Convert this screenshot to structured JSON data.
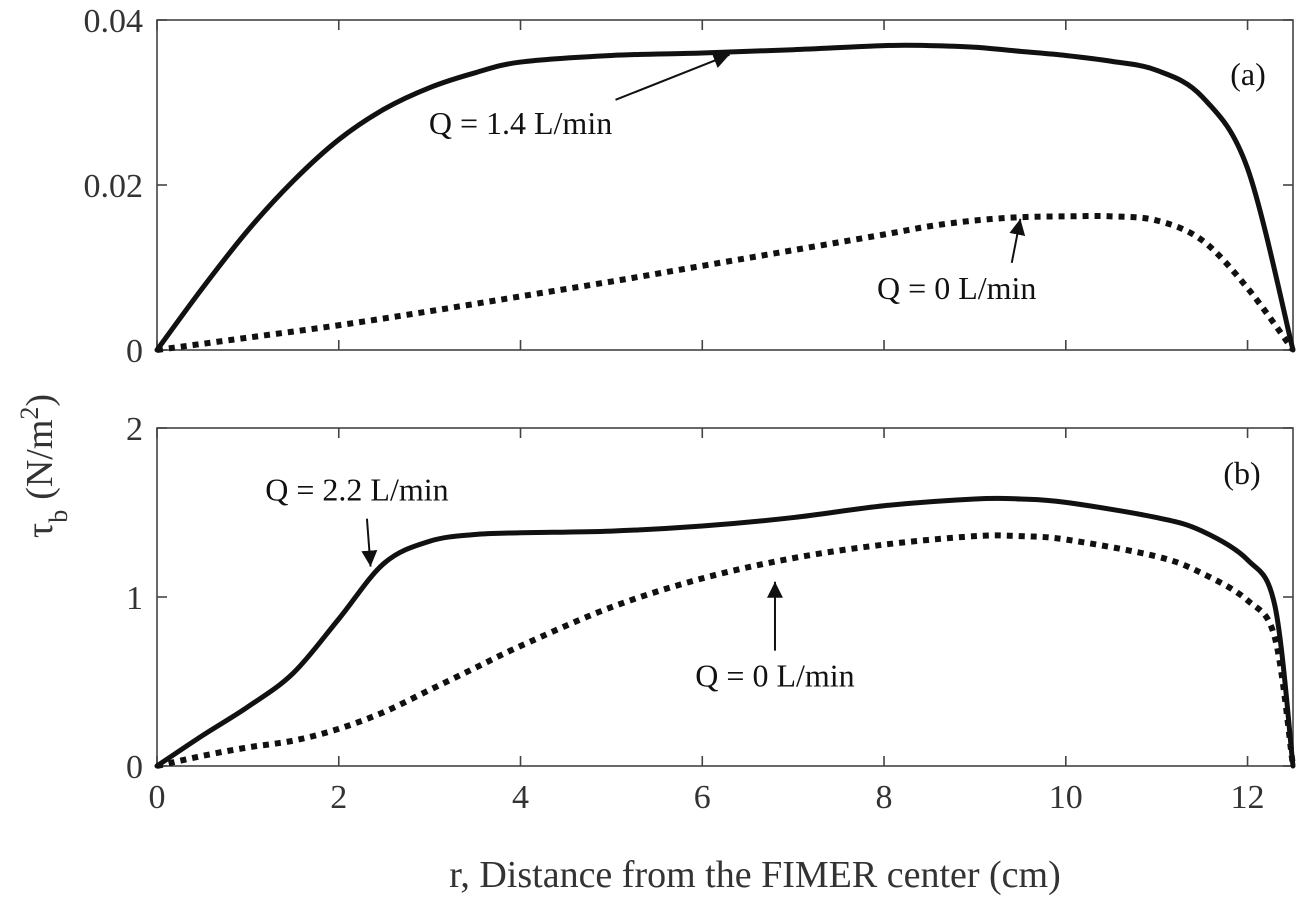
{
  "chart_data": [
    {
      "id": "a",
      "type": "line",
      "panel_label": "(a)",
      "xlim": [
        0,
        12.5
      ],
      "ylim": [
        0,
        0.04
      ],
      "x_ticks": [
        0,
        2,
        4,
        6,
        8,
        10,
        12
      ],
      "y_ticks": [
        0,
        0.02,
        0.04
      ],
      "y_tick_labels": [
        "0",
        "0.02",
        "0.04"
      ],
      "grid": false,
      "series": [
        {
          "style": "solid",
          "x": [
            0,
            0.5,
            1,
            1.5,
            2,
            2.5,
            3,
            3.5,
            4,
            5,
            6,
            7,
            8,
            8.5,
            9,
            9.5,
            10,
            10.5,
            11,
            11.5,
            12,
            12.5
          ],
          "y": [
            0,
            0.0075,
            0.0145,
            0.0205,
            0.0255,
            0.0292,
            0.0318,
            0.0336,
            0.0349,
            0.0357,
            0.036,
            0.0364,
            0.0369,
            0.0369,
            0.0367,
            0.0362,
            0.0357,
            0.035,
            0.0339,
            0.0307,
            0.022,
            0
          ]
        },
        {
          "style": "dotted",
          "x": [
            0,
            1,
            2,
            3,
            4,
            5,
            6,
            7,
            8,
            8.5,
            9,
            9.5,
            10,
            10.5,
            11,
            11.5,
            12,
            12.5
          ],
          "y": [
            0,
            0.0015,
            0.003,
            0.0047,
            0.0065,
            0.0083,
            0.0102,
            0.0121,
            0.014,
            0.015,
            0.0157,
            0.0161,
            0.0162,
            0.0162,
            0.0157,
            0.0133,
            0.0075,
            0
          ]
        }
      ],
      "annotations": [
        {
          "text": "Q = 1.4 L/min",
          "at": [
            6.3,
            0.0358
          ],
          "label_pos": [
            4.0,
            0.0262
          ]
        },
        {
          "text": "Q = 0 L/min",
          "at": [
            9.5,
            0.0159
          ],
          "label_pos": [
            8.8,
            0.0062
          ]
        }
      ]
    },
    {
      "id": "b",
      "type": "line",
      "panel_label": "(b)",
      "xlim": [
        0,
        12.5
      ],
      "ylim": [
        0,
        2
      ],
      "x_ticks": [
        0,
        2,
        4,
        6,
        8,
        10,
        12
      ],
      "x_tick_labels": [
        "0",
        "2",
        "4",
        "6",
        "8",
        "10",
        "12"
      ],
      "y_ticks": [
        0,
        1,
        2
      ],
      "y_tick_labels": [
        "0",
        "1",
        "2"
      ],
      "grid": false,
      "series": [
        {
          "style": "solid",
          "x": [
            0,
            0.5,
            1,
            1.5,
            2,
            2.5,
            3,
            3.5,
            4,
            5,
            6,
            7,
            8,
            9,
            9.5,
            10,
            11,
            11.5,
            12,
            12.3,
            12.5
          ],
          "y": [
            0,
            0.18,
            0.35,
            0.55,
            0.87,
            1.2,
            1.33,
            1.37,
            1.38,
            1.39,
            1.42,
            1.47,
            1.54,
            1.58,
            1.58,
            1.56,
            1.47,
            1.39,
            1.22,
            0.95,
            0
          ]
        },
        {
          "style": "dotted",
          "x": [
            0,
            0.5,
            1,
            1.5,
            2,
            2.5,
            3,
            3.5,
            4,
            5,
            6,
            7,
            8,
            9,
            9.5,
            10,
            11,
            11.5,
            12,
            12.3,
            12.5
          ],
          "y": [
            0,
            0.06,
            0.11,
            0.15,
            0.22,
            0.32,
            0.45,
            0.58,
            0.71,
            0.94,
            1.11,
            1.23,
            1.31,
            1.36,
            1.36,
            1.34,
            1.24,
            1.14,
            0.98,
            0.76,
            0
          ]
        }
      ],
      "annotations": [
        {
          "text": "Q = 2.2 L/min",
          "at": [
            2.35,
            1.18
          ],
          "label_pos": [
            2.2,
            1.57
          ]
        },
        {
          "text": "Q = 0 L/min",
          "at": [
            6.8,
            1.09
          ],
          "label_pos": [
            6.8,
            0.47
          ]
        }
      ]
    }
  ],
  "shared": {
    "xlabel": "r, Distance from the FIMER center (cm)",
    "ylabel_symbol": "τ",
    "ylabel_subscript": "b",
    "ylabel_unit_prefix": "(N/m",
    "ylabel_unit_power": "2",
    "ylabel_unit_suffix": ")"
  }
}
